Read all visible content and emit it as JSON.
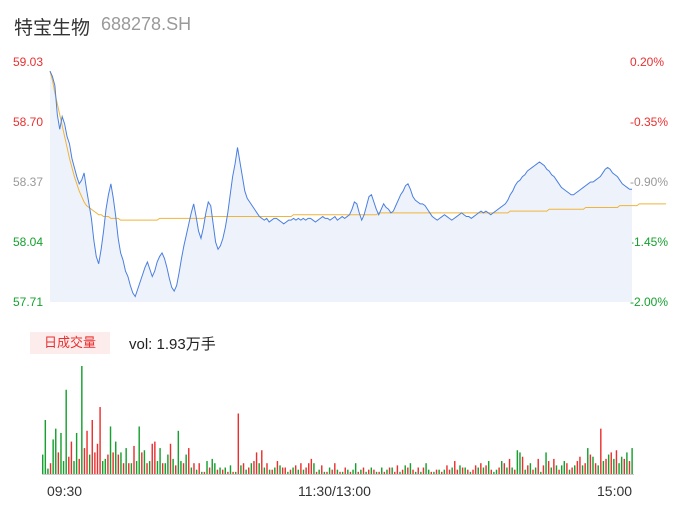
{
  "stock": {
    "name": "特宝生物",
    "code": "688278.SH"
  },
  "chart_data": [
    {
      "type": "line",
      "y_ticks_left": [
        "59.03",
        "58.70",
        "58.37",
        "58.04",
        "57.71"
      ],
      "y_ticks_right": [
        "0.20%",
        "-0.35%",
        "-0.90%",
        "-1.45%",
        "-2.00%"
      ],
      "ylim": [
        57.71,
        59.03
      ],
      "x_ticks": [
        "09:30",
        "11:30/13:00",
        "15:00"
      ],
      "colors": {
        "price": "#4a7fe0",
        "average": "#f0b43a",
        "fill": "#eef3fb",
        "up": "#e93030",
        "down": "#15a02f"
      },
      "series": [
        {
          "values": [
            58.98,
            58.95,
            58.9,
            58.74,
            58.66,
            58.73,
            58.69,
            58.62,
            58.58,
            58.5,
            58.45,
            58.4,
            58.36,
            58.38,
            58.42,
            58.33,
            58.25,
            58.17,
            58.05,
            57.96,
            57.92,
            58.0,
            58.1,
            58.22,
            58.3,
            58.36,
            58.28,
            58.18,
            58.06,
            57.98,
            57.94,
            57.88,
            57.85,
            57.8,
            57.76,
            57.74,
            57.78,
            57.82,
            57.86,
            57.9,
            57.93,
            57.89,
            57.85,
            57.88,
            57.93,
            57.96,
            57.98,
            57.95,
            57.9,
            57.84,
            57.79,
            57.77,
            57.8,
            57.87,
            57.95,
            58.02,
            58.08,
            58.14,
            58.2,
            58.25,
            58.18,
            58.1,
            58.06,
            58.12,
            58.2,
            58.26,
            58.24,
            58.14,
            58.04,
            58.0,
            58.02,
            58.06,
            58.12,
            58.2,
            58.3,
            58.4,
            58.47,
            58.56,
            58.48,
            58.4,
            58.32,
            58.28,
            58.26,
            58.24,
            58.22,
            58.2,
            58.18,
            58.17,
            58.16,
            58.17,
            58.15,
            58.16,
            58.17,
            58.17,
            58.16,
            58.15,
            58.14,
            58.15,
            58.16,
            58.16,
            58.17,
            58.16,
            58.17,
            58.16,
            58.17,
            58.16,
            58.17,
            58.17,
            58.16,
            58.15,
            58.16,
            58.17,
            58.18,
            58.17,
            58.17,
            58.16,
            58.17,
            58.18,
            58.16,
            58.17,
            58.18,
            58.17,
            58.18,
            58.19,
            58.22,
            58.26,
            58.25,
            58.2,
            58.16,
            58.19,
            58.24,
            58.29,
            58.3,
            58.26,
            58.22,
            58.19,
            58.22,
            58.25,
            58.23,
            58.22,
            58.2,
            58.21,
            58.24,
            58.27,
            58.3,
            58.32,
            58.35,
            58.36,
            58.33,
            58.29,
            58.27,
            58.26,
            58.25,
            58.25,
            58.24,
            58.22,
            58.2,
            58.18,
            58.17,
            58.16,
            58.17,
            58.18,
            58.19,
            58.18,
            58.17,
            58.16,
            58.17,
            58.18,
            58.19,
            58.2,
            58.19,
            58.18,
            58.18,
            58.17,
            58.18,
            58.19,
            58.2,
            58.21,
            58.2,
            58.21,
            58.2,
            58.19,
            58.2,
            58.21,
            58.22,
            58.23,
            58.24,
            58.25,
            58.27,
            58.3,
            58.32,
            58.35,
            58.37,
            58.38,
            58.4,
            58.41,
            58.43,
            58.44,
            58.45,
            58.46,
            58.47,
            58.48,
            58.47,
            58.46,
            58.44,
            58.43,
            58.41,
            58.4,
            58.38,
            58.36,
            58.34,
            58.33,
            58.32,
            58.31,
            58.3,
            58.3,
            58.31,
            58.32,
            58.33,
            58.34,
            58.35,
            58.36,
            58.37,
            58.37,
            58.38,
            58.39,
            58.4,
            58.42,
            58.44,
            58.45,
            58.44,
            58.42,
            58.41,
            58.4,
            58.38,
            58.36,
            58.35,
            58.34,
            58.33,
            58.33
          ],
          "values_note": ""
        },
        {
          "values": [
            58.98,
            58.93,
            58.86,
            58.8,
            58.74,
            58.68,
            58.62,
            58.56,
            58.5,
            58.45,
            58.4,
            58.36,
            58.32,
            58.29,
            58.26,
            58.24,
            58.23,
            58.22,
            58.21,
            58.2,
            58.19,
            58.19,
            58.18,
            58.18,
            58.18,
            58.17,
            58.17,
            58.17,
            58.17,
            58.16,
            58.16,
            58.16,
            58.16,
            58.16,
            58.16,
            58.16,
            58.16,
            58.16,
            58.16,
            58.16,
            58.16,
            58.16,
            58.16,
            58.16,
            58.16,
            58.17,
            58.17,
            58.17,
            58.17,
            58.17,
            58.17,
            58.17,
            58.17,
            58.17,
            58.17,
            58.17,
            58.17,
            58.17,
            58.17,
            58.17,
            58.17,
            58.17,
            58.17,
            58.17,
            58.18,
            58.18,
            58.18,
            58.18,
            58.18,
            58.18,
            58.18,
            58.18,
            58.18,
            58.18,
            58.18,
            58.18,
            58.18,
            58.18,
            58.18,
            58.18,
            58.18,
            58.18,
            58.18,
            58.18,
            58.18,
            58.18,
            58.18,
            58.18,
            58.18,
            58.18,
            58.18,
            58.18,
            58.18,
            58.18,
            58.18,
            58.18,
            58.18,
            58.18,
            58.18,
            58.18,
            58.19,
            58.19,
            58.19,
            58.19,
            58.19,
            58.19,
            58.19,
            58.19,
            58.19,
            58.19,
            58.19,
            58.19,
            58.19,
            58.19,
            58.19,
            58.19,
            58.19,
            58.19,
            58.19,
            58.19,
            58.19,
            58.19,
            58.19,
            58.19,
            58.19,
            58.19,
            58.19,
            58.19,
            58.19,
            58.19,
            58.19,
            58.19,
            58.19,
            58.19,
            58.19,
            58.2,
            58.2,
            58.2,
            58.2,
            58.2,
            58.2,
            58.2,
            58.2,
            58.2,
            58.2,
            58.2,
            58.2,
            58.2,
            58.2,
            58.2,
            58.2,
            58.2,
            58.2,
            58.2,
            58.2,
            58.2,
            58.2,
            58.2,
            58.2,
            58.2,
            58.2,
            58.2,
            58.2,
            58.2,
            58.2,
            58.2,
            58.2,
            58.2,
            58.2,
            58.2,
            58.2,
            58.2,
            58.2,
            58.2,
            58.2,
            58.2,
            58.2,
            58.2,
            58.2,
            58.2,
            58.2,
            58.2,
            58.2,
            58.2,
            58.2,
            58.2,
            58.2,
            58.2,
            58.2,
            58.21,
            58.21,
            58.21,
            58.21,
            58.21,
            58.21,
            58.21,
            58.21,
            58.21,
            58.21,
            58.21,
            58.21,
            58.21,
            58.21,
            58.21,
            58.21,
            58.22,
            58.22,
            58.22,
            58.22,
            58.22,
            58.22,
            58.22,
            58.22,
            58.22,
            58.22,
            58.22,
            58.22,
            58.22,
            58.22,
            58.22,
            58.23,
            58.23,
            58.23,
            58.23,
            58.23,
            58.23,
            58.23,
            58.23,
            58.23,
            58.23,
            58.23,
            58.23,
            58.23,
            58.23,
            58.24,
            58.24,
            58.24,
            58.24,
            58.24,
            58.24,
            58.24,
            58.24,
            58.25,
            58.25,
            58.25,
            58.25,
            58.25,
            58.25,
            58.25,
            58.25,
            58.25,
            58.25,
            58.25,
            58.25
          ],
          "values_note": ""
        }
      ]
    },
    {
      "type": "bar",
      "badge": "日成交量",
      "volume_text": "vol: 1.93万手",
      "values": [
        18,
        50,
        5,
        10,
        32,
        42,
        20,
        38,
        12,
        78,
        16,
        30,
        12,
        38,
        14,
        100,
        24,
        40,
        18,
        50,
        20,
        28,
        62,
        12,
        14,
        18,
        44,
        20,
        30,
        18,
        20,
        10,
        24,
        10,
        10,
        26,
        12,
        44,
        20,
        22,
        10,
        12,
        28,
        30,
        12,
        24,
        10,
        10,
        18,
        28,
        14,
        8,
        40,
        12,
        10,
        18,
        24,
        6,
        10,
        4,
        10,
        2,
        2,
        12,
        6,
        14,
        10,
        4,
        6,
        4,
        6,
        2,
        8,
        2,
        2,
        56,
        8,
        10,
        4,
        6,
        10,
        12,
        20,
        10,
        22,
        6,
        10,
        4,
        4,
        6,
        12,
        8,
        6,
        6,
        2,
        4,
        6,
        8,
        4,
        10,
        4,
        6,
        10,
        14,
        10,
        2,
        4,
        8,
        2,
        2,
        6,
        4,
        10,
        4,
        2,
        2,
        6,
        4,
        2,
        4,
        10,
        2,
        4,
        6,
        2,
        4,
        6,
        4,
        2,
        2,
        6,
        2,
        4,
        6,
        6,
        2,
        8,
        2,
        4,
        8,
        6,
        10,
        4,
        2,
        6,
        2,
        6,
        10,
        4,
        2,
        2,
        4,
        4,
        2,
        4,
        8,
        4,
        6,
        12,
        4,
        8,
        6,
        6,
        4,
        2,
        4,
        8,
        6,
        10,
        6,
        8,
        12,
        4,
        2,
        4,
        6,
        12,
        10,
        6,
        14,
        6,
        4,
        22,
        20,
        16,
        4,
        8,
        10,
        4,
        6,
        14,
        2,
        8,
        20,
        12,
        6,
        14,
        8,
        4,
        8,
        12,
        10,
        4,
        6,
        8,
        12,
        16,
        8,
        10,
        24,
        18,
        16,
        10,
        8,
        42,
        12,
        14,
        18,
        20,
        14,
        22,
        10,
        16,
        14,
        20,
        12,
        24
      ],
      "up_flags": [
        0,
        0,
        0,
        1,
        0,
        0,
        1,
        0,
        0,
        0,
        1,
        1,
        0,
        0,
        1,
        0,
        1,
        1,
        0,
        1,
        1,
        1,
        1,
        0,
        0,
        1,
        0,
        1,
        0,
        1,
        0,
        1,
        0,
        1,
        0,
        1,
        0,
        0,
        1,
        0,
        1,
        0,
        1,
        1,
        0,
        0,
        1,
        0,
        0,
        1,
        0,
        1,
        0,
        0,
        1,
        0,
        1,
        0,
        1,
        0,
        1,
        0,
        1,
        0,
        1,
        0,
        0,
        1,
        0,
        1,
        0,
        1,
        0,
        1,
        0,
        1,
        0,
        1,
        0,
        1,
        0,
        1,
        1,
        0,
        1,
        0,
        1,
        0,
        1,
        0,
        1,
        0,
        1,
        1,
        0,
        1,
        0,
        1,
        0,
        1,
        0,
        1,
        1,
        1,
        0,
        1,
        0,
        1,
        0,
        1,
        0,
        1,
        1,
        0,
        1,
        0,
        1,
        0,
        1,
        0,
        0,
        1,
        0,
        1,
        0,
        1,
        0,
        1,
        0,
        1,
        0,
        1,
        0,
        1,
        0,
        1,
        1,
        0,
        1,
        0,
        1,
        0,
        1,
        0,
        1,
        0,
        1,
        0,
        0,
        1,
        0,
        1,
        0,
        1,
        0,
        1,
        1,
        0,
        1,
        1,
        0,
        1,
        0,
        1,
        0,
        1,
        1,
        0,
        1,
        0,
        1,
        0,
        1,
        0,
        0,
        1,
        0,
        1,
        0,
        1,
        0,
        1,
        0,
        0,
        1,
        0,
        1,
        0,
        1,
        0,
        1,
        0,
        1,
        0,
        1,
        0,
        1,
        0,
        1,
        0,
        0,
        1,
        0,
        1,
        0,
        1,
        1,
        0,
        1,
        0,
        1,
        0,
        1,
        0,
        1,
        0,
        1,
        0,
        1,
        0,
        1,
        0,
        0,
        1,
        0,
        1,
        0,
        0,
        1,
        0,
        1,
        0,
        1,
        1,
        0,
        0,
        1,
        1,
        0,
        1,
        0,
        1,
        0,
        0,
        1,
        0
      ]
    }
  ]
}
